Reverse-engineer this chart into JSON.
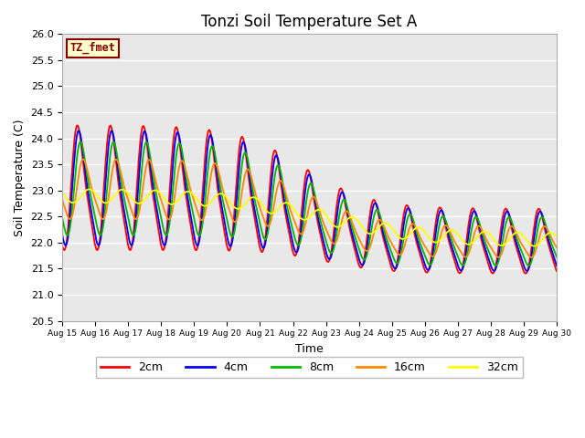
{
  "title": "Tonzi Soil Temperature Set A",
  "xlabel": "Time",
  "ylabel": "Soil Temperature (C)",
  "ylim": [
    20.5,
    26.0
  ],
  "yticks": [
    20.5,
    21.0,
    21.5,
    22.0,
    22.5,
    23.0,
    23.5,
    24.0,
    24.5,
    25.0,
    25.5,
    26.0
  ],
  "xtick_labels": [
    "Aug 15",
    "Aug 16",
    "Aug 17",
    "Aug 18",
    "Aug 19",
    "Aug 20",
    "Aug 21",
    "Aug 22",
    "Aug 23",
    "Aug 24",
    "Aug 25",
    "Aug 26",
    "Aug 27",
    "Aug 28",
    "Aug 29",
    "Aug 30"
  ],
  "legend_entries": [
    "2cm",
    "4cm",
    "8cm",
    "16cm",
    "32cm"
  ],
  "line_colors": [
    "#ff0000",
    "#0000ff",
    "#00bb00",
    "#ff8800",
    "#ffff00"
  ],
  "line_widths": [
    1.3,
    1.3,
    1.3,
    1.3,
    1.3
  ],
  "annotation_text": "TZ_fmet",
  "annotation_bg": "#ffffcc",
  "annotation_border": "#880000",
  "plot_bg": "#e8e8e8",
  "fig_bg": "#ffffff",
  "grid_color": "#ffffff",
  "title_fontsize": 12,
  "axis_label_fontsize": 9
}
